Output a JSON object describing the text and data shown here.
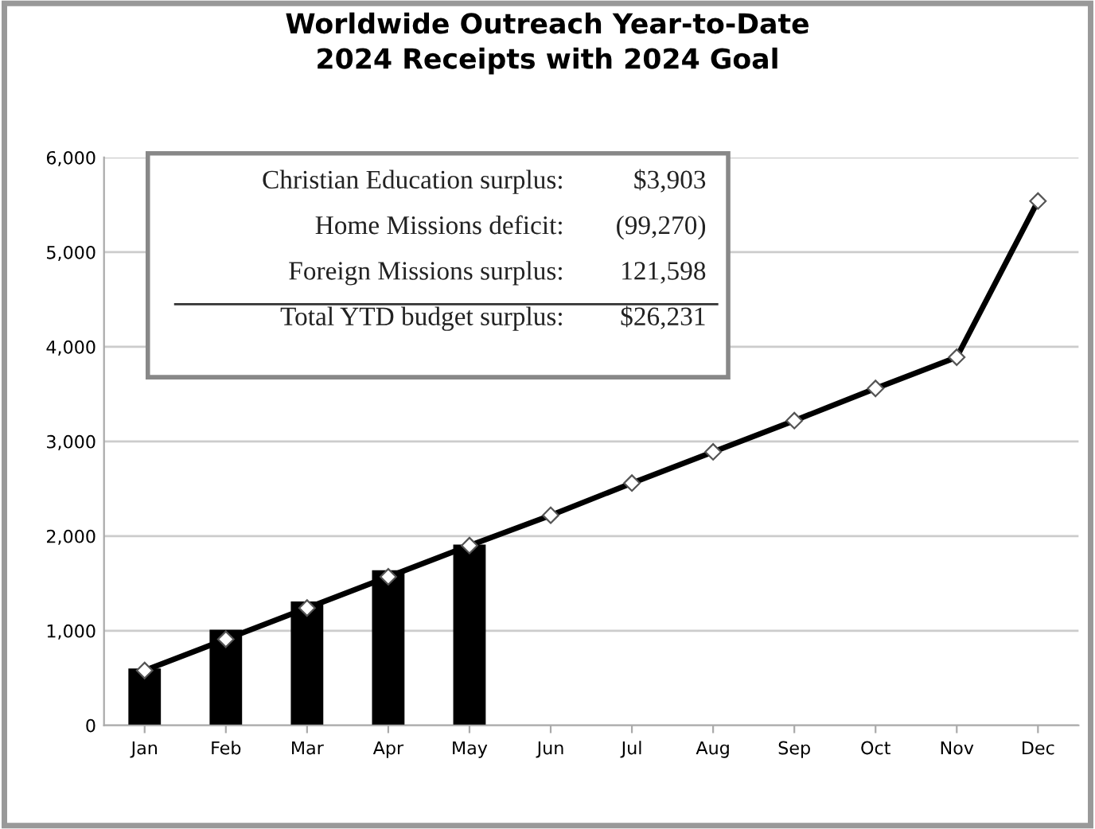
{
  "chart_data": {
    "type": "bar",
    "title": "Worldwide Outreach Year-to-Date\n2024 Receipts with 2024 Goal",
    "categories": [
      "Jan",
      "Feb",
      "Mar",
      "Apr",
      "May",
      "Jun",
      "Jul",
      "Aug",
      "Sep",
      "Oct",
      "Nov",
      "Dec"
    ],
    "series": [
      {
        "color": "#000000",
        "values": [
          600,
          1010,
          1310,
          1640,
          1910,
          null,
          null,
          null,
          null,
          null,
          null,
          null
        ]
      },
      {
        "type": "line",
        "color": "#000000",
        "marker": "diamond",
        "values": [
          580,
          910,
          1240,
          1570,
          1900,
          2220,
          2560,
          2890,
          3220,
          3560,
          3890,
          5540
        ]
      }
    ],
    "ylim": [
      0,
      6000
    ],
    "yticks": [
      0,
      {
        "value": 1000,
        "label": "1,000"
      },
      {
        "value": 2000,
        "label": "2,000"
      },
      {
        "value": 3000,
        "label": "3,000"
      },
      {
        "value": 4000,
        "label": "4,000"
      },
      {
        "value": 5000,
        "label": "5,000"
      },
      {
        "value": 6000,
        "label": "6,000"
      }
    ],
    "grid": "y",
    "legend": false,
    "annotations": [
      "Christian Education surplus:",
      "$3,903",
      "Home Missions deficit:",
      "(99,270)",
      "Foreign Missions surplus:",
      "121,598",
      "Total YTD budget surplus:",
      "$26,231"
    ]
  }
}
